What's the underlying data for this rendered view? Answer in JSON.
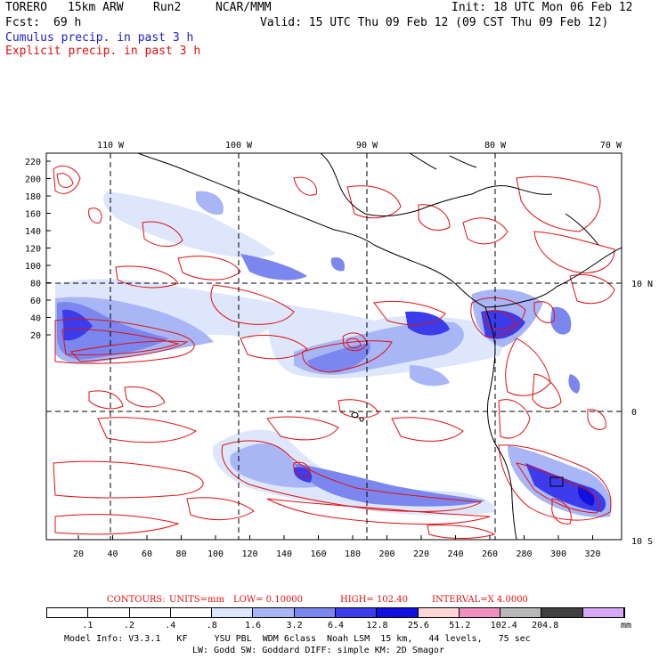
{
  "header": {
    "model": "TORERO",
    "res": "15km ARW",
    "run": "Run2",
    "org": "NCAR/MMM",
    "init": "Init: 18 UTC Mon 06 Feb 12",
    "fcst_label": "Fcst:",
    "fcst_value": "69 h",
    "valid": "Valid: 15 UTC Thu 09 Feb 12 (09 CST Thu 09 Feb 12)",
    "field1": "Cumulus precip. in past 3 h",
    "field2": "Explicit precip. in past 3 h"
  },
  "axes": {
    "lon_labels": [
      "110 W",
      "100 W",
      "90 W",
      "80 W",
      "70 W"
    ],
    "lat_labels": [
      "10 N",
      "0",
      "10 S"
    ],
    "y_ticks": [
      "220",
      "200",
      "180",
      "160",
      "140",
      "120",
      "100",
      "80",
      "60",
      "40",
      "20"
    ],
    "x_ticks": [
      "20",
      "40",
      "60",
      "80",
      "100",
      "120",
      "140",
      "160",
      "180",
      "200",
      "220",
      "240",
      "260",
      "280",
      "300",
      "320"
    ]
  },
  "contours": {
    "label": "CONTOURS:",
    "units": "UNITS=mm",
    "low": "LOW= 0.10000",
    "high": "HIGH= 102.40",
    "interval": "INTERVAL=X 4.0000"
  },
  "colorbar": {
    "labels": [
      ".1",
      ".2",
      ".4",
      ".8",
      "1.6",
      "3.2",
      "6.4",
      "12.8",
      "25.6",
      "51.2",
      "102.4",
      "204.8"
    ],
    "unit": "mm",
    "colors": [
      "#ffffff",
      "#ffffff",
      "#ffffff",
      "#ffffff",
      "#dde6fa",
      "#a9b6f5",
      "#7b87ef",
      "#3c3cec",
      "#1010e0",
      "#ffd6d6",
      "#f090c0",
      "#b8b8b8",
      "#404040",
      "#d8a8f8"
    ]
  },
  "footer": {
    "line1": "Model Info: V3.3.1   KF     YSU PBL  WDM 6class  Noah LSM  15 km,   44 levels,   75 sec",
    "line2": "LW: Godd SW: Goddard DIFF: simple KM: 2D Smagor"
  }
}
